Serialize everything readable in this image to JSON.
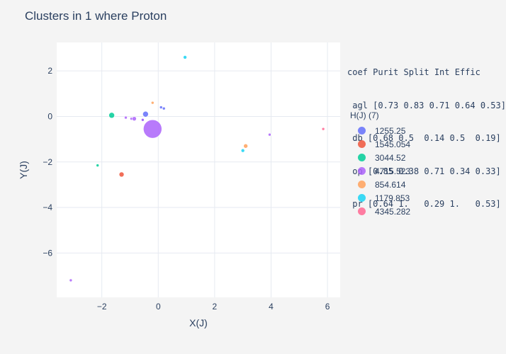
{
  "chart_data": {
    "type": "scatter",
    "title": "Clusters in 1 where Proton",
    "xlabel": "X(J)",
    "ylabel": "Y(J)",
    "xlim": [
      -3.6,
      6.45
    ],
    "ylim": [
      -7.95,
      3.25
    ],
    "xticks": [
      -2,
      0,
      2,
      4,
      6
    ],
    "yticks": [
      2,
      0,
      -2,
      -4,
      -6
    ],
    "grid": true,
    "legend_title": "H(J) (7)",
    "legend_position": "right",
    "coef_table": [
      "coef Purit Split Int Effic",
      " agl [0.73 0.83 0.71 0.64 0.53]",
      " db [0.68 0.5  0.14 0.5  0.19]",
      " op [0.85 0.38 0.71 0.34 0.33]",
      " pr [0.64 1.   0.29 1.   0.53]"
    ],
    "series": [
      {
        "name": "1255.25",
        "color": "#636efa",
        "points": [
          {
            "x": -0.45,
            "y": 0.1,
            "size": 4
          },
          {
            "x": 0.1,
            "y": 0.4,
            "size": 2
          },
          {
            "x": 0.2,
            "y": 0.35,
            "size": 2
          },
          {
            "x": -0.55,
            "y": -0.15,
            "size": 2
          }
        ]
      },
      {
        "name": "1545.054",
        "color": "#ef553b",
        "points": [
          {
            "x": -1.3,
            "y": -2.55,
            "size": 3.5
          }
        ]
      },
      {
        "name": "3044.52",
        "color": "#00cc96",
        "points": [
          {
            "x": -1.65,
            "y": 0.05,
            "size": 4
          },
          {
            "x": -2.15,
            "y": -2.15,
            "size": 2
          }
        ]
      },
      {
        "name": "4715.523",
        "color": "#ab63fa",
        "points": [
          {
            "x": -0.2,
            "y": -0.55,
            "size": 13
          },
          {
            "x": -1.15,
            "y": -0.05,
            "size": 2
          },
          {
            "x": -0.95,
            "y": -0.1,
            "size": 2
          },
          {
            "x": -0.85,
            "y": -0.1,
            "size": 3
          },
          {
            "x": -0.55,
            "y": -0.15,
            "size": 2
          },
          {
            "x": 3.95,
            "y": -0.8,
            "size": 2
          },
          {
            "x": -3.1,
            "y": -7.2,
            "size": 2
          }
        ]
      },
      {
        "name": "854.614",
        "color": "#ffa15a",
        "points": [
          {
            "x": 3.1,
            "y": -1.3,
            "size": 3
          },
          {
            "x": -0.2,
            "y": 0.6,
            "size": 2
          }
        ]
      },
      {
        "name": "1179.853",
        "color": "#19d3f3",
        "points": [
          {
            "x": 0.95,
            "y": 2.6,
            "size": 2.5
          },
          {
            "x": 3.0,
            "y": -1.5,
            "size": 2.5
          }
        ]
      },
      {
        "name": "4345.282",
        "color": "#ff6692",
        "points": [
          {
            "x": 5.85,
            "y": -0.55,
            "size": 2
          }
        ]
      }
    ]
  }
}
